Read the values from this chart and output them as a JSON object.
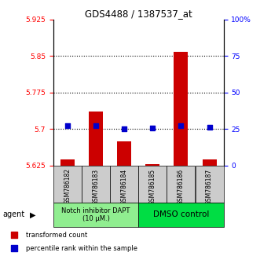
{
  "title": "GDS4488 / 1387537_at",
  "samples": [
    "GSM786182",
    "GSM786183",
    "GSM786184",
    "GSM786185",
    "GSM786186",
    "GSM786187"
  ],
  "red_values": [
    5.638,
    5.735,
    5.675,
    5.628,
    5.858,
    5.638
  ],
  "blue_values": [
    5.706,
    5.706,
    5.7,
    5.702,
    5.707,
    5.703
  ],
  "ylim_left": [
    5.625,
    5.925
  ],
  "ylim_right": [
    0,
    100
  ],
  "yticks_left": [
    5.625,
    5.7,
    5.775,
    5.85,
    5.925
  ],
  "yticks_right": [
    0,
    25,
    50,
    75,
    100
  ],
  "ytick_labels_left": [
    "5.625",
    "5.7",
    "5.775",
    "5.85",
    "5.925"
  ],
  "ytick_labels_right": [
    "0",
    "25",
    "50",
    "75",
    "100%"
  ],
  "hlines": [
    5.7,
    5.775,
    5.85
  ],
  "group1_label": "Notch inhibitor DAPT\n(10 μM.)",
  "group2_label": "DMSO control",
  "group1_indices": [
    0,
    1,
    2
  ],
  "group2_indices": [
    3,
    4,
    5
  ],
  "group1_color": "#90EE90",
  "group2_color": "#00DD44",
  "agent_label": "agent",
  "legend1": "transformed count",
  "legend2": "percentile rank within the sample",
  "red_color": "#CC0000",
  "blue_color": "#0000CC",
  "bar_bottom": 5.625,
  "bar_width": 0.5
}
